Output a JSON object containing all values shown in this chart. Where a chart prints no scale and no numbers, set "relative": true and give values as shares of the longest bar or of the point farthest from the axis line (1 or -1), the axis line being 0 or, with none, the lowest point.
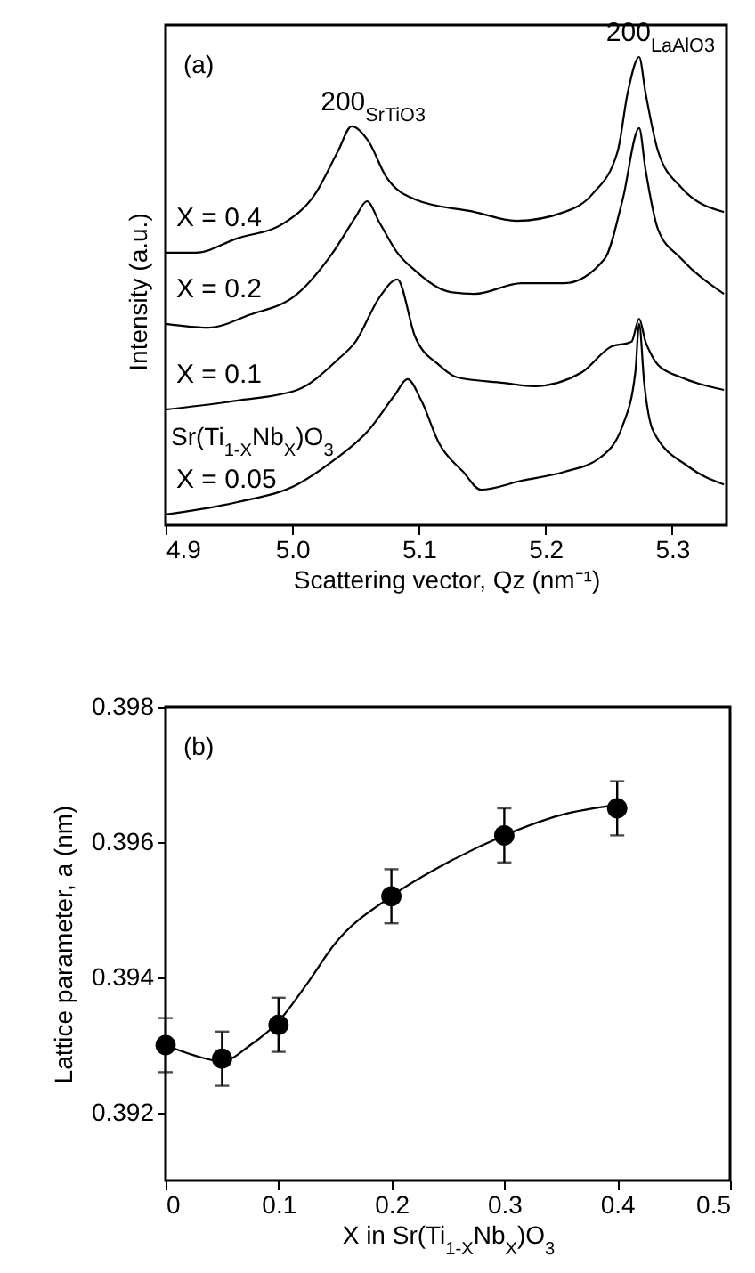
{
  "chart_data": [
    {
      "type": "line",
      "relative": true,
      "xlabel": "Scattering vector, Qz (nm⁻¹)",
      "ylabel": "Intensity (a.u.)",
      "xlim": [
        4.9,
        5.343
      ],
      "xticks": [
        4.9,
        {
          "value": 5,
          "label": "5.0"
        },
        5.1,
        5.2,
        5.3
      ],
      "tick_labels": "x",
      "series": [
        {
          "name": "X = 0.4",
          "color": "#000000",
          "x": [
            4.9,
            4.924,
            4.956,
            4.994,
            5.018,
            5.036,
            5.047,
            5.06,
            5.074,
            5.097,
            5.144,
            5.177,
            5.215,
            5.237,
            5.257,
            5.265,
            5.274,
            5.279,
            5.289,
            5.307,
            5.341
          ],
          "values": [
            0.582,
            0.582,
            0.612,
            0.646,
            0.707,
            0.798,
            0.852,
            0.821,
            0.745,
            0.696,
            0.669,
            0.65,
            0.669,
            0.707,
            0.798,
            0.924,
            1,
            0.924,
            0.798,
            0.722,
            0.669
          ]
        },
        {
          "name": "X = 0.2",
          "color": "#000000",
          "x": [
            4.9,
            4.934,
            4.966,
            5.004,
            5.032,
            5.05,
            5.059,
            5.069,
            5.083,
            5.097,
            5.125,
            5.144,
            5.181,
            5.215,
            5.247,
            5.261,
            5.274,
            5.279,
            5.289,
            5.307,
            5.341
          ],
          "values": [
            0.43,
            0.422,
            0.449,
            0.494,
            0.582,
            0.658,
            0.692,
            0.646,
            0.582,
            0.544,
            0.498,
            0.494,
            0.517,
            0.517,
            0.57,
            0.696,
            0.848,
            0.76,
            0.631,
            0.57,
            0.494
          ]
        },
        {
          "name": "X = 0.1",
          "color": "#000000",
          "x": [
            4.9,
            4.956,
            5.004,
            5.036,
            5.05,
            5.069,
            5.083,
            5.097,
            5.116,
            5.13,
            5.167,
            5.191,
            5.229,
            5.251,
            5.268,
            5.274,
            5.279,
            5.282,
            5.289,
            5.307,
            5.341
          ],
          "values": [
            0.247,
            0.266,
            0.289,
            0.354,
            0.392,
            0.487,
            0.525,
            0.403,
            0.342,
            0.316,
            0.304,
            0.297,
            0.327,
            0.38,
            0.392,
            0.441,
            0.392,
            0.373,
            0.342,
            0.316,
            0.289
          ]
        },
        {
          "name": "X = 0.05",
          "color": "#000000",
          "x": [
            4.9,
            4.956,
            5.004,
            5.032,
            5.06,
            5.081,
            5.091,
            5.102,
            5.116,
            5.135,
            5.149,
            5.181,
            5.215,
            5.243,
            5.261,
            5.271,
            5.274,
            5.278,
            5.285,
            5.313,
            5.341
          ],
          "values": [
            0.023,
            0.049,
            0.087,
            0.137,
            0.202,
            0.278,
            0.312,
            0.266,
            0.175,
            0.114,
            0.076,
            0.095,
            0.114,
            0.144,
            0.213,
            0.327,
            0.43,
            0.304,
            0.202,
            0.125,
            0.087
          ]
        }
      ],
      "annotations": [
        "(a)",
        "Sr(Ti$_{1-X}$Nb$_{X}$)O$_{3}$",
        {
          "text": "200$_{SrTiO3}$",
          "x": 5.047,
          "y": 0.852
        },
        {
          "text": "200$_{LaAlO3}$",
          "x": 5.274,
          "y": 1
        }
      ]
    },
    {
      "type": "scatter",
      "xlabel": "X in Sr(Ti$_{1-X}$Nb$_{X}$)O$_{3}$",
      "ylabel": "Lattice parameter, a (nm)",
      "xlim": [
        0,
        0.5
      ],
      "xticks": [
        0,
        0.1,
        0.2,
        0.3,
        0.4,
        0.5
      ],
      "ylim": [
        0.391,
        0.398
      ],
      "yticks": [
        0.392,
        0.394,
        0.396,
        0.398
      ],
      "series": [
        {
          "color": "#000000",
          "marker": "circle",
          "x": [
            0,
            0.05,
            0.1,
            0.2,
            0.3,
            0.4
          ],
          "values": [
            0.393,
            0.3928,
            0.3933,
            0.3952,
            0.3961,
            0.3965
          ],
          "errors": [
            0.0004,
            0.0004,
            0.0004,
            0.0004,
            0.0004,
            0.0004
          ]
        },
        {
          "type": "line",
          "color": "#000000",
          "x": [
            0,
            0.025,
            0.05,
            0.075,
            0.1,
            0.125,
            0.15,
            0.2,
            0.25,
            0.3,
            0.35,
            0.4
          ],
          "values": [
            0.393,
            0.39285,
            0.39276,
            0.393,
            0.39335,
            0.3939,
            0.3945,
            0.3952,
            0.3957,
            0.3961,
            0.3964,
            0.39655
          ]
        }
      ],
      "annotations": [
        "(b)"
      ]
    }
  ]
}
